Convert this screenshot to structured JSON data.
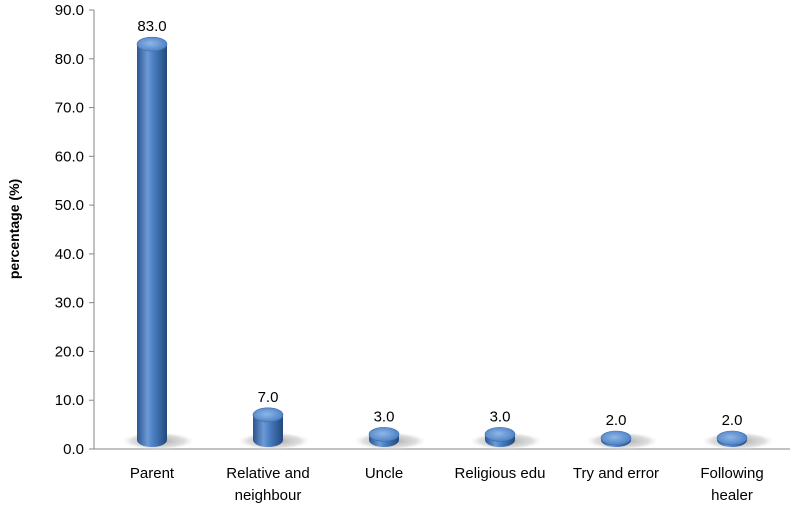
{
  "chart_data": {
    "type": "bar",
    "title": "",
    "xlabel": "",
    "ylabel": "percentage (%)",
    "ylim": [
      0,
      90
    ],
    "yticks": [
      "0.0",
      "10.0",
      "20.0",
      "30.0",
      "40.0",
      "50.0",
      "60.0",
      "70.0",
      "80.0",
      "90.0"
    ],
    "categories": [
      [
        "Parent"
      ],
      [
        "Relative and",
        "neighbour"
      ],
      [
        "Uncle"
      ],
      [
        "Religious edu"
      ],
      [
        "Try and error"
      ],
      [
        "Following",
        "healer"
      ]
    ],
    "values": [
      83.0,
      7.0,
      3.0,
      3.0,
      2.0,
      2.0
    ],
    "data_labels": [
      "83.0",
      "7.0",
      "3.0",
      "3.0",
      "2.0",
      "2.0"
    ],
    "grid": false,
    "legend": "none",
    "bar_style": "3d-cylinder",
    "colors": {
      "bar": "#4a7ec2",
      "bar_dark": "#2a558e",
      "bar_light": "#86b0e4",
      "shadow": "#c8c8c8",
      "axis": "#868686"
    }
  }
}
